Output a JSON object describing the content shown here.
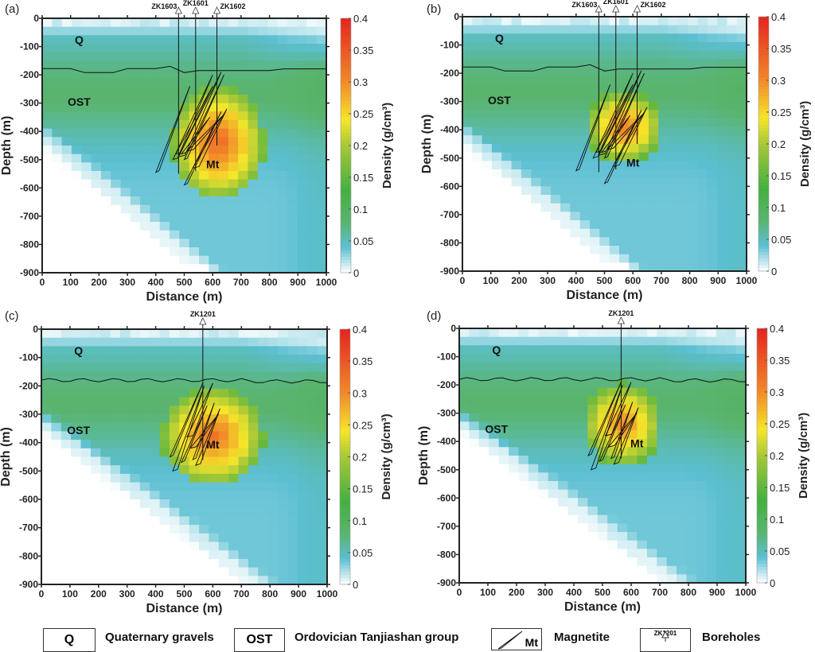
{
  "chart_data": [
    {
      "type": "heatmap",
      "panel_label": "(a)",
      "xlabel": "Distance (m)",
      "ylabel": "Depth (m)",
      "xlim": [
        0,
        1000
      ],
      "ylim": [
        -900,
        0
      ],
      "xticks": [
        "0",
        "100",
        "200",
        "300",
        "400",
        "500",
        "600",
        "700",
        "800",
        "900",
        "1000"
      ],
      "yticks": [
        "0",
        "-100",
        "-200",
        "-300",
        "-400",
        "-500",
        "-600",
        "-700",
        "-800",
        "-900"
      ],
      "colorbar": {
        "label": "Density (g/cm³)",
        "ticks": [
          "0",
          "0.05",
          "0.1",
          "0.15",
          "0.2",
          "0.25",
          "0.3",
          "0.35",
          "0.4"
        ],
        "range": [
          0,
          0.4
        ]
      },
      "boreholes": [
        {
          "name": "ZK1603",
          "x": 480,
          "bottom": -550
        },
        {
          "name": "ZK1601",
          "x": 540,
          "bottom": -540
        },
        {
          "name": "ZK1602",
          "x": 615,
          "bottom": -450
        }
      ],
      "annotations": [
        {
          "text": "Q",
          "x": 130,
          "y": -90
        },
        {
          "text": "OST",
          "x": 130,
          "y": -310
        },
        {
          "text": "Mt",
          "x": 600,
          "y": -530
        }
      ],
      "anomaly": {
        "center_x": 620,
        "center_y": -440,
        "peak_density": 0.33,
        "x_range": [
          450,
          760
        ],
        "y_range": [
          -640,
          -260
        ]
      }
    },
    {
      "type": "heatmap",
      "panel_label": "(b)",
      "xlabel": "Distance (m)",
      "ylabel": "Depth (m)",
      "xlim": [
        0,
        1000
      ],
      "ylim": [
        -900,
        0
      ],
      "xticks": [
        "0",
        "100",
        "200",
        "300",
        "400",
        "500",
        "600",
        "700",
        "800",
        "900",
        "1000"
      ],
      "yticks": [
        "0",
        "-100",
        "-200",
        "-300",
        "-400",
        "-500",
        "-600",
        "-700",
        "-800",
        "-900"
      ],
      "colorbar": {
        "label": "Density (g/cm³)",
        "ticks": [
          "0",
          "0.05",
          "0.1",
          "0.15",
          "0.2",
          "0.25",
          "0.3",
          "0.35",
          "0.4"
        ],
        "range": [
          0,
          0.4
        ]
      },
      "boreholes": [
        {
          "name": "ZK1603",
          "x": 480,
          "bottom": -550
        },
        {
          "name": "ZK1601",
          "x": 540,
          "bottom": -540
        },
        {
          "name": "ZK1602",
          "x": 615,
          "bottom": -450
        }
      ],
      "annotations": [
        {
          "text": "Q",
          "x": 130,
          "y": -90
        },
        {
          "text": "OST",
          "x": 130,
          "y": -310
        },
        {
          "text": "Mt",
          "x": 600,
          "y": -530
        }
      ],
      "anomaly": {
        "center_x": 570,
        "center_y": -390,
        "peak_density": 0.31,
        "x_range": [
          460,
          710
        ],
        "y_range": [
          -500,
          -260
        ]
      }
    },
    {
      "type": "heatmap",
      "panel_label": "(c)",
      "xlabel": "Distance (m)",
      "ylabel": "Depth (m)",
      "xlim": [
        0,
        1000
      ],
      "ylim": [
        -900,
        0
      ],
      "xticks": [
        "0",
        "100",
        "200",
        "300",
        "400",
        "500",
        "600",
        "700",
        "800",
        "900",
        "1000"
      ],
      "yticks": [
        "0",
        "-100",
        "-200",
        "-300",
        "-400",
        "-500",
        "-600",
        "-700",
        "-800",
        "-900"
      ],
      "colorbar": {
        "label": "Density (g/cm³)",
        "ticks": [
          "0",
          "0.05",
          "0.1",
          "0.15",
          "0.2",
          "0.25",
          "0.3",
          "0.35",
          "0.4"
        ],
        "range": [
          0,
          0.4
        ]
      },
      "boreholes": [
        {
          "name": "ZK1201",
          "x": 565,
          "bottom": -460
        }
      ],
      "annotations": [
        {
          "text": "Q",
          "x": 130,
          "y": -90
        },
        {
          "text": "OST",
          "x": 130,
          "y": -370
        },
        {
          "text": "Mt",
          "x": 600,
          "y": -420
        }
      ],
      "anomaly": {
        "center_x": 600,
        "center_y": -380,
        "peak_density": 0.32,
        "x_range": [
          410,
          750
        ],
        "y_range": [
          -560,
          -230
        ]
      }
    },
    {
      "type": "heatmap",
      "panel_label": "(d)",
      "xlabel": "Distance (m)",
      "ylabel": "Depth (m)",
      "xlim": [
        0,
        1000
      ],
      "ylim": [
        -900,
        0
      ],
      "xticks": [
        "0",
        "100",
        "200",
        "300",
        "400",
        "500",
        "600",
        "700",
        "800",
        "900",
        "1000"
      ],
      "yticks": [
        "0",
        "-100",
        "-200",
        "-300",
        "-400",
        "-500",
        "-600",
        "-700",
        "-800",
        "-900"
      ],
      "colorbar": {
        "label": "Density (g/cm³)",
        "ticks": [
          "0",
          "0.05",
          "0.1",
          "0.15",
          "0.2",
          "0.25",
          "0.3",
          "0.35",
          "0.4"
        ],
        "range": [
          0,
          0.4
        ]
      },
      "boreholes": [
        {
          "name": "ZK1201",
          "x": 565,
          "bottom": -460
        }
      ],
      "annotations": [
        {
          "text": "Q",
          "x": 130,
          "y": -90
        },
        {
          "text": "OST",
          "x": 130,
          "y": -370
        },
        {
          "text": "Mt",
          "x": 620,
          "y": -420
        }
      ],
      "anomaly": {
        "center_x": 570,
        "center_y": -340,
        "peak_density": 0.3,
        "x_range": [
          420,
          680
        ],
        "y_range": [
          -480,
          -200
        ]
      }
    }
  ],
  "legend": {
    "items": [
      {
        "symbol": "Q",
        "label": "Quaternary gravels"
      },
      {
        "symbol": "OST",
        "label": "Ordovician Tanjiashan group"
      },
      {
        "symbol": "Mt",
        "label": "Magnetite"
      },
      {
        "symbol": "ZK1201",
        "label": "Boreholes"
      }
    ]
  },
  "colors": {
    "low": "#ffffff",
    "cyan": "#5bbfd2",
    "green": "#5ab46e",
    "yellow": "#f5e62a",
    "orange": "#f08a2a",
    "red": "#e52420"
  }
}
